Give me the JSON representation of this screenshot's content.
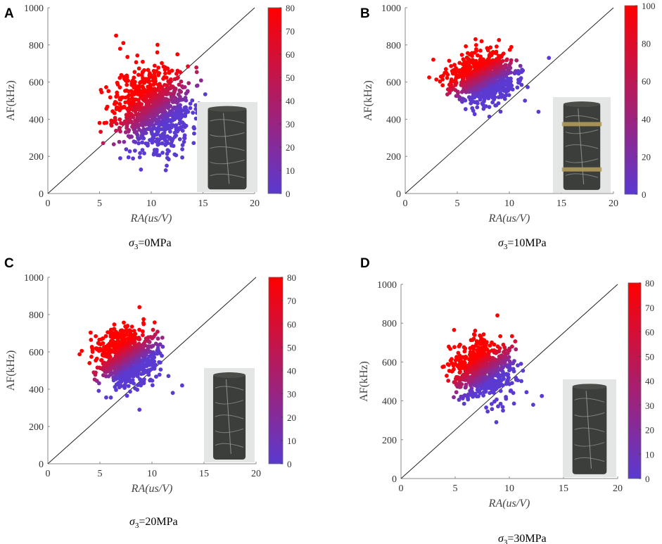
{
  "figure": {
    "panels": [
      "A",
      "B",
      "C",
      "D"
    ],
    "colorbar_colors": {
      "low": "#5a3ad1",
      "high": "#ff0000"
    }
  },
  "chart_data": [
    {
      "type": "scatter",
      "panel": "A",
      "caption_symbol": "σ",
      "caption_sub": "3",
      "caption_value": "=0MPa",
      "xlabel": "RA(us/V)",
      "ylabel": "AF(kHz)",
      "xlim": [
        0,
        20
      ],
      "ylim": [
        0,
        1000
      ],
      "xticks": [
        0,
        5,
        10,
        15,
        20
      ],
      "yticks": [
        0,
        200,
        400,
        600,
        800,
        1000
      ],
      "diagonal_line": {
        "from": [
          0,
          0
        ],
        "to": [
          20,
          1000
        ]
      },
      "colorbar": {
        "min": 0,
        "max": 80,
        "ticks": [
          0,
          10,
          20,
          30,
          40,
          50,
          60,
          70,
          80
        ]
      },
      "cluster": {
        "center_x": 10.2,
        "center_y": 460,
        "spread_x": 1.8,
        "spread_y": 110,
        "n_points": 900,
        "seed": 11
      },
      "outliers": [
        [
          6.6,
          850
        ],
        [
          7.3,
          810
        ],
        [
          5.0,
          380
        ],
        [
          7.0,
          190
        ],
        [
          7.8,
          195
        ],
        [
          5.2,
          545
        ]
      ],
      "photo": {
        "label": "rock-specimen-photo",
        "bands": false
      }
    },
    {
      "type": "scatter",
      "panel": "B",
      "caption_symbol": "σ",
      "caption_sub": "3",
      "caption_value": "=10MPa",
      "xlabel": "RA(us/V)",
      "ylabel": "AF(kHz)",
      "xlim": [
        0,
        20
      ],
      "ylim": [
        0,
        1000
      ],
      "xticks": [
        0,
        5,
        10,
        15,
        20
      ],
      "yticks": [
        0,
        200,
        400,
        600,
        800,
        1000
      ],
      "diagonal_line": {
        "from": [
          0,
          0
        ],
        "to": [
          20,
          1000
        ]
      },
      "colorbar": {
        "min": 0,
        "max": 100,
        "ticks": [
          0,
          20,
          40,
          60,
          80,
          100
        ]
      },
      "cluster": {
        "center_x": 7.4,
        "center_y": 620,
        "spread_x": 1.5,
        "spread_y": 65,
        "n_points": 800,
        "seed": 23
      },
      "outliers": [
        [
          2.3,
          625
        ],
        [
          13.8,
          730
        ],
        [
          12.8,
          440
        ],
        [
          11.5,
          500
        ]
      ],
      "photo": {
        "label": "rock-specimen-photo",
        "bands": true
      }
    },
    {
      "type": "scatter",
      "panel": "C",
      "caption_symbol": "σ",
      "caption_sub": "3",
      "caption_value": "=20MPa",
      "xlabel": "RA(us/V)",
      "ylabel": "AF(kHz)",
      "xlim": [
        0,
        20
      ],
      "ylim": [
        0,
        1000
      ],
      "xticks": [
        0,
        5,
        10,
        15,
        20
      ],
      "yticks": [
        0,
        200,
        400,
        600,
        800,
        1000
      ],
      "diagonal_line": {
        "from": [
          0,
          0
        ],
        "to": [
          20,
          1000
        ]
      },
      "colorbar": {
        "min": 0,
        "max": 80,
        "ticks": [
          0,
          10,
          20,
          30,
          40,
          50,
          60,
          70,
          80
        ]
      },
      "cluster": {
        "center_x": 7.6,
        "center_y": 575,
        "spread_x": 1.4,
        "spread_y": 75,
        "n_points": 750,
        "seed": 37
      },
      "outliers": [
        [
          8.8,
          840
        ],
        [
          8.8,
          290
        ],
        [
          4.3,
          600
        ],
        [
          12.9,
          420
        ],
        [
          12.0,
          380
        ]
      ],
      "photo": {
        "label": "rock-specimen-photo",
        "bands": false
      }
    },
    {
      "type": "scatter",
      "panel": "D",
      "caption_symbol": "σ",
      "caption_sub": "3",
      "caption_value": "=30MPa",
      "xlabel": "RA(us/V)",
      "ylabel": "AF(kHz)",
      "xlim": [
        0,
        20
      ],
      "ylim": [
        0,
        1000
      ],
      "xticks": [
        0,
        5,
        10,
        15,
        20
      ],
      "yticks": [
        0,
        200,
        400,
        600,
        800,
        1000
      ],
      "diagonal_line": {
        "from": [
          0,
          0
        ],
        "to": [
          20,
          1000
        ]
      },
      "colorbar": {
        "min": 0,
        "max": 80,
        "ticks": [
          0,
          10,
          20,
          30,
          40,
          50,
          60,
          70,
          80
        ]
      },
      "cluster": {
        "center_x": 7.6,
        "center_y": 560,
        "spread_x": 1.4,
        "spread_y": 75,
        "n_points": 700,
        "seed": 41
      },
      "outliers": [
        [
          8.9,
          840
        ],
        [
          8.8,
          290
        ],
        [
          4.9,
          765
        ],
        [
          13.0,
          425
        ],
        [
          12.2,
          380
        ]
      ],
      "photo": {
        "label": "rock-specimen-photo",
        "bands": false
      }
    }
  ]
}
